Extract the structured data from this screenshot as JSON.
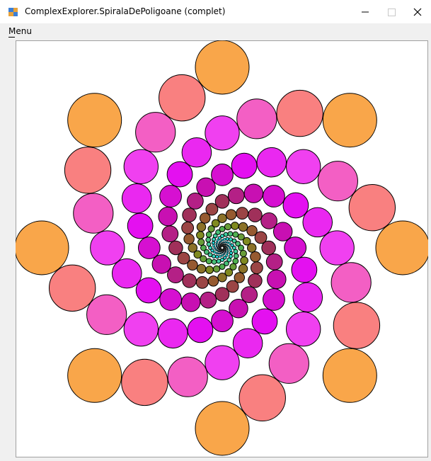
{
  "window": {
    "title": "ComplexExplorer.SpiralaDePoligoane (complet)"
  },
  "menu": {
    "items": [
      "Menu"
    ]
  }
}
